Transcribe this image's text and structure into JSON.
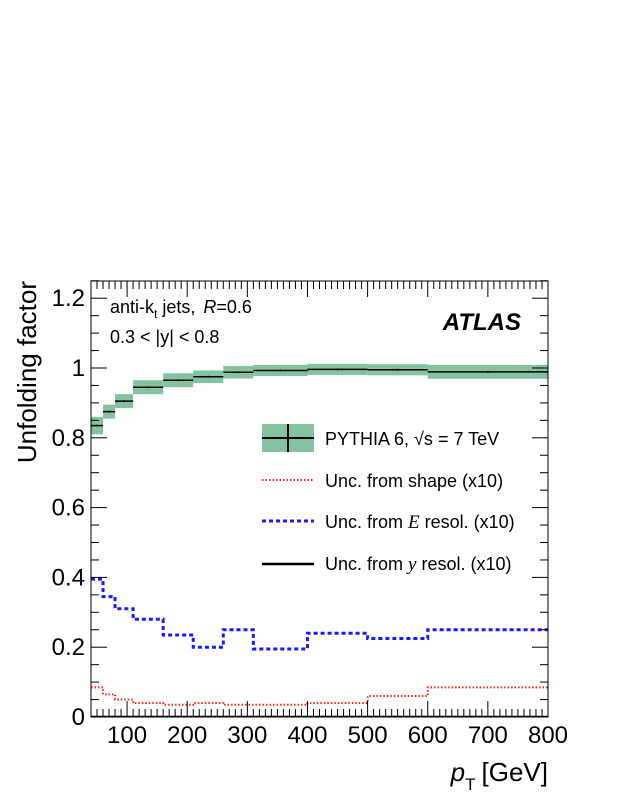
{
  "chart_data": {
    "type": "step",
    "xlabel": "p_T [GeV]",
    "xlabel_main": "p",
    "xlabel_sub": "T",
    "xlabel_unit": "[GeV]",
    "ylabel": "Unfolding factor",
    "xlim": [
      40,
      800
    ],
    "ylim": [
      0,
      1.25
    ],
    "xticks": [
      100,
      200,
      300,
      400,
      500,
      600,
      700,
      800
    ],
    "yticks": [
      0,
      0.2,
      0.4,
      0.6,
      0.8,
      1,
      1.2
    ],
    "ytick_labels": [
      "0",
      "0.2",
      "0.4",
      "0.6",
      "0.8",
      "1",
      "1.2"
    ],
    "bin_edges": [
      40,
      60,
      80,
      110,
      160,
      210,
      260,
      310,
      400,
      500,
      600,
      800
    ],
    "annotations": {
      "jets_prefix": "anti-k",
      "jets_sub": "t",
      "jets_suffix": " jets,",
      "radius_var": "R",
      "radius_val": "=0.6",
      "rapidity": "0.3 < |y| < 0.8",
      "experiment": "ATLAS"
    },
    "series": [
      {
        "name": "PYTHIA 6, √s = 7 TeV",
        "style": "band",
        "color": "#84c3a0",
        "values": [
          0.835,
          0.875,
          0.905,
          0.945,
          0.965,
          0.975,
          0.988,
          0.993,
          0.996,
          0.995,
          0.989
        ],
        "band_halfwidth": [
          0.025,
          0.02,
          0.02,
          0.02,
          0.02,
          0.018,
          0.018,
          0.016,
          0.016,
          0.016,
          0.02
        ]
      },
      {
        "name": "Unc. from shape (x10)",
        "style": "dotted",
        "color": "#ff2020",
        "values": [
          0.085,
          0.065,
          0.05,
          0.04,
          0.035,
          0.04,
          0.035,
          0.035,
          0.04,
          0.06,
          0.085
        ]
      },
      {
        "name": "Unc. from E resol. (x10)",
        "style": "dashed",
        "color": "#1a1aff",
        "values": [
          0.395,
          0.345,
          0.31,
          0.28,
          0.235,
          0.2,
          0.25,
          0.195,
          0.24,
          0.225,
          0.25
        ]
      },
      {
        "name": "Unc. from y resol. (x10)",
        "style": "solid",
        "color": "#000000",
        "values": [
          0,
          0,
          0,
          0,
          0,
          0,
          0,
          0,
          0,
          0,
          0
        ]
      }
    ],
    "legend": {
      "placement": "center-right",
      "entries": [
        {
          "pre": "PYTHIA 6, ",
          "sqrt": "√s",
          "post": " = 7 TeV"
        },
        {
          "pre": "Unc. from shape (x10)",
          "var": "",
          "post": ""
        },
        {
          "pre": "Unc. from ",
          "var": "E",
          "post": " resol. (x10)"
        },
        {
          "pre": "Unc. from ",
          "var": "y",
          "post": " resol. (x10)"
        }
      ]
    }
  }
}
